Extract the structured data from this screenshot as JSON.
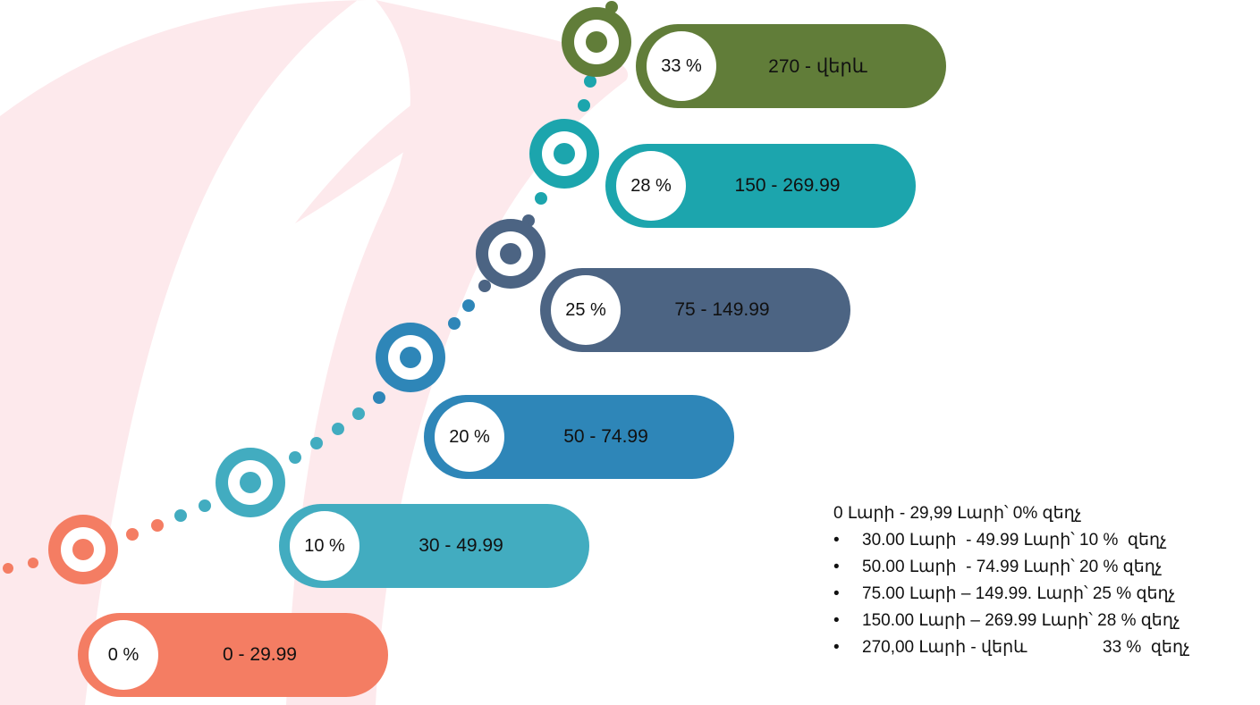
{
  "tiers": [
    {
      "percent": "0 %",
      "range": "0 - 29.99",
      "color": "#F47D63"
    },
    {
      "percent": "10 %",
      "range": "30 - 49.99",
      "color": "#42ACC0"
    },
    {
      "percent": "20 %",
      "range": "50 - 74.99",
      "color": "#2E86B8"
    },
    {
      "percent": "25 %",
      "range": "75 - 149.99",
      "color": "#4C6483"
    },
    {
      "percent": "28 %",
      "range": "150 - 269.99",
      "color": "#1CA5AD"
    },
    {
      "percent": "33 %",
      "range": "270 - վերև",
      "color": "#617D39"
    }
  ],
  "notes": {
    "first": "0 Լարի - 29,99 Լարի՝ 0% զեղչ",
    "items": [
      "30.00 Լարի  - 49.99 Լարի՝ 10 %  զեղչ",
      "50.00 Լարի  - 74.99 Լարի՝ 20 % զեղչ",
      "75.00 Լարի – 149.99. Լարի՝ 25 % զեղչ",
      "150.00 Լարի – 269.99 Լարի՝ 28 % զեղչ",
      "270,00 Լարի - վերև                33 %  զեղչ"
    ]
  }
}
